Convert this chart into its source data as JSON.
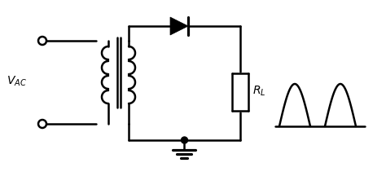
{
  "bg_color": "#ffffff",
  "line_color": "#000000",
  "line_width": 1.8,
  "fig_width": 4.74,
  "fig_height": 2.16,
  "vac_label": "$V_{AC}$",
  "rl_label": "$R_L$"
}
